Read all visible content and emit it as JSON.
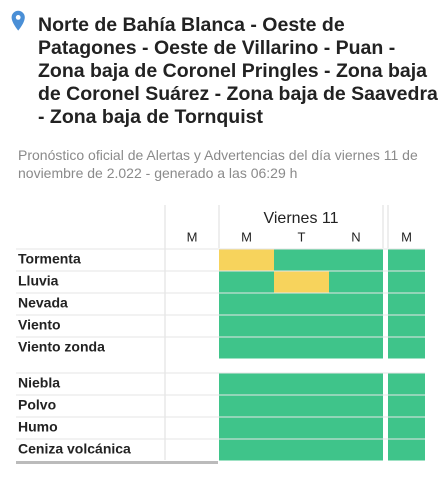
{
  "header": {
    "title": "Norte de Bahía Blanca - Oeste de Patagones - Oeste de Villarino - Puan - Zona baja de Coronel Pringles - Zona baja de Coronel Suárez - Zona baja de Saavedra - Zona baja de Tornquist",
    "subtitle": "Pronóstico oficial de Alertas y Advertencias del día viernes 11 de noviembre de 2.022 - generado a las 06:29 h"
  },
  "table": {
    "day": "Viernes 11",
    "periods": [
      "M",
      "M",
      "T",
      "N",
      "M"
    ],
    "groups": [
      {
        "rows": [
          {
            "label": "Tormenta",
            "cells": [
              null,
              "#f7d35c",
              "#3fc48a",
              "#3fc48a",
              "#3fc48a"
            ]
          },
          {
            "label": "Lluvia",
            "cells": [
              null,
              "#3fc48a",
              "#f7d35c",
              "#3fc48a",
              "#3fc48a"
            ]
          },
          {
            "label": "Nevada",
            "cells": [
              null,
              "#3fc48a",
              "#3fc48a",
              "#3fc48a",
              "#3fc48a"
            ]
          },
          {
            "label": "Viento",
            "cells": [
              null,
              "#3fc48a",
              "#3fc48a",
              "#3fc48a",
              "#3fc48a"
            ]
          },
          {
            "label": "Viento zonda",
            "cells": [
              null,
              "#3fc48a",
              "#3fc48a",
              "#3fc48a",
              "#3fc48a"
            ]
          }
        ]
      },
      {
        "rows": [
          {
            "label": "Niebla",
            "cells": [
              null,
              "#3fc48a",
              "#3fc48a",
              "#3fc48a",
              "#3fc48a"
            ]
          },
          {
            "label": "Polvo",
            "cells": [
              null,
              "#3fc48a",
              "#3fc48a",
              "#3fc48a",
              "#3fc48a"
            ]
          },
          {
            "label": "Humo",
            "cells": [
              null,
              "#3fc48a",
              "#3fc48a",
              "#3fc48a",
              "#3fc48a"
            ]
          },
          {
            "label": "Ceniza volcánica",
            "cells": [
              null,
              "#3fc48a",
              "#3fc48a",
              "#3fc48a",
              "#3fc48a"
            ]
          }
        ]
      }
    ]
  }
}
